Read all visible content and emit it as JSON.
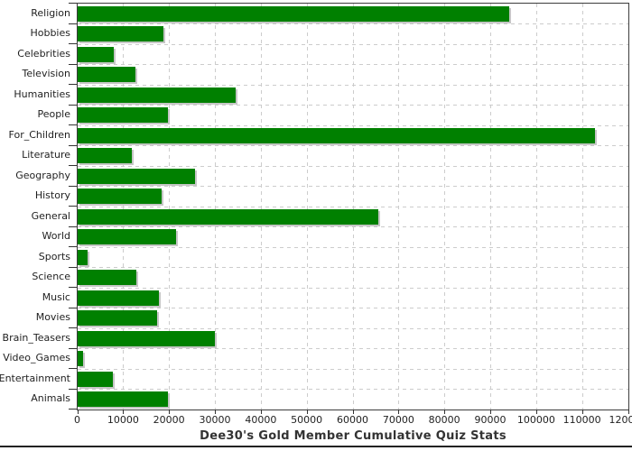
{
  "chart_data": {
    "type": "bar",
    "orientation": "horizontal",
    "title": "Dee30's Gold Member Cumulative Quiz Stats",
    "xlabel": "",
    "ylabel": "",
    "categories": [
      "Religion",
      "Hobbies",
      "Celebrities",
      "Television",
      "Humanities",
      "People",
      "For_Children",
      "Literature",
      "Geography",
      "History",
      "General",
      "World",
      "Sports",
      "Science",
      "Music",
      "Movies",
      "Brain_Teasers",
      "Video_Games",
      "Entertainment",
      "Animals"
    ],
    "values": [
      94000,
      18600,
      7800,
      12600,
      34500,
      19700,
      112800,
      11800,
      25600,
      18300,
      65600,
      21400,
      2100,
      12700,
      17800,
      17400,
      29900,
      1100,
      7700,
      19700
    ],
    "xlim": [
      0,
      120000
    ],
    "x_ticks": [
      0,
      10000,
      20000,
      30000,
      40000,
      50000,
      60000,
      70000,
      80000,
      90000,
      100000,
      110000,
      120000
    ],
    "x_tick_labels": [
      "0",
      "10000",
      "20000",
      "30000",
      "40000",
      "50000",
      "60000",
      "70000",
      "80000",
      "90000",
      "100000",
      "110000",
      "120000"
    ],
    "grid": "dashed vertical lines at every x tick and dashed horizontal lines at category boundaries",
    "legend": "none",
    "colors": {
      "bar": "#008000",
      "bar_shadow": "#c6c6c6",
      "grid": "#cccccc",
      "axis": "#3c3c3c",
      "tick": "#333333",
      "text": "#1f1f1f",
      "title": "#333333",
      "background": "#ffffff",
      "bottom_divider": "#222222"
    }
  }
}
